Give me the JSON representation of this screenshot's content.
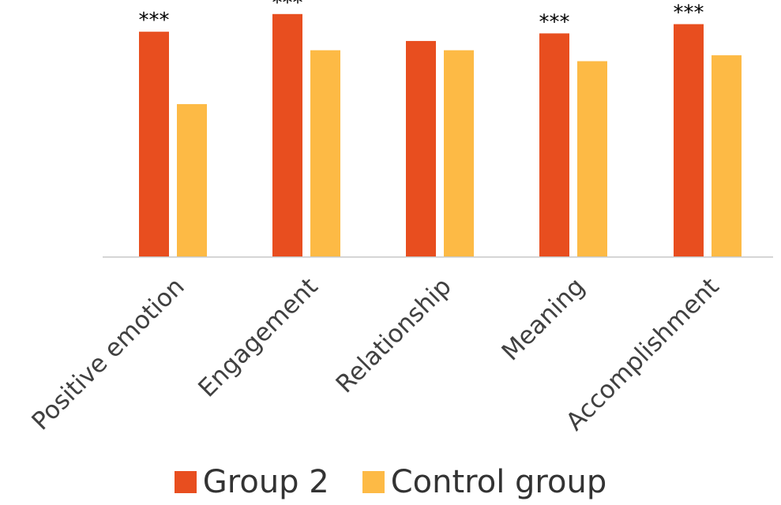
{
  "chart_data": {
    "type": "bar",
    "title": "",
    "xlabel": "",
    "ylabel": "",
    "categories": [
      "Positive emotion",
      "Engagement",
      "Relationship",
      "Meaning",
      "Accomplishment"
    ],
    "series": [
      {
        "name": "Group 2",
        "color": "#E84E1F",
        "values": [
          267,
          288,
          256,
          265,
          276
        ]
      },
      {
        "name": "Control group",
        "color": "#FDBA45",
        "values": [
          181,
          245,
          245,
          232,
          239
        ]
      }
    ],
    "ylim": [
      0,
      300
    ],
    "grid": false,
    "legend_position": "bottom",
    "annotations": [
      {
        "category": "Positive emotion",
        "series": "Group 2",
        "text": "***"
      },
      {
        "category": "Engagement",
        "series": "Group 2",
        "text": "***"
      },
      {
        "category": "Meaning",
        "series": "Group 2",
        "text": "***"
      },
      {
        "category": "Accomplishment",
        "series": "Group 2",
        "text": "***"
      }
    ]
  }
}
